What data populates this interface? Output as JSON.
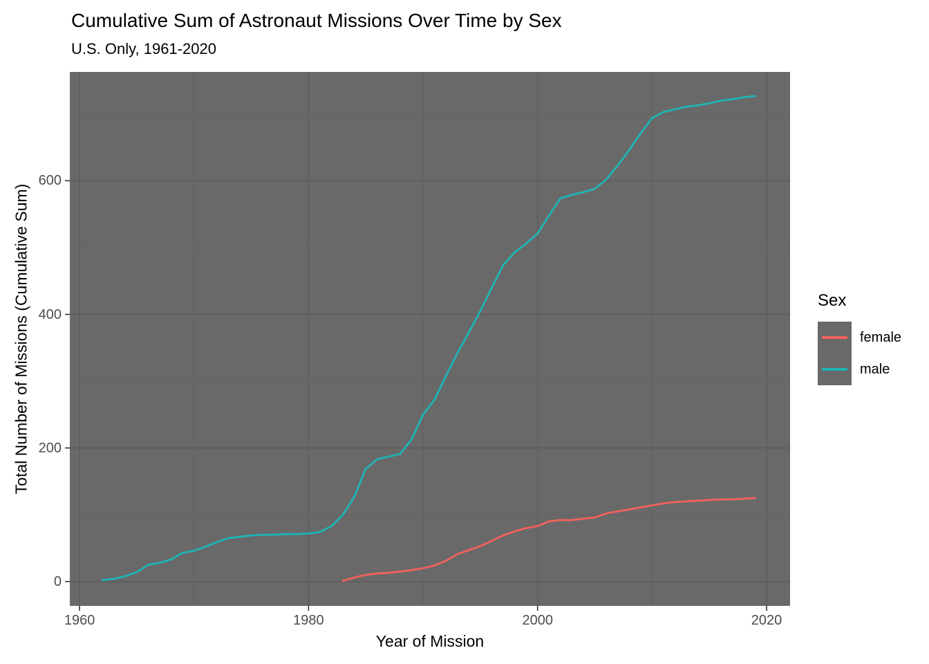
{
  "title": "Cumulative Sum of Astronaut Missions Over Time by Sex",
  "subtitle": "U.S. Only, 1961-2020",
  "legend": {
    "title": "Sex",
    "items": [
      {
        "label": "female",
        "color": "#F4615C"
      },
      {
        "label": "male",
        "color": "#1FB4B6"
      }
    ]
  },
  "chart_data": {
    "type": "line",
    "title": "Cumulative Sum of Astronaut Missions Over Time by Sex",
    "subtitle": "U.S. Only, 1961-2020",
    "xlabel": "Year of Mission",
    "ylabel": "Total Number of Missions (Cumulative Sum)",
    "xlim": [
      1959.15,
      2022.05
    ],
    "ylim": [
      -36.5,
      763
    ],
    "x_ticks": [
      1960,
      1980,
      2000,
      2020
    ],
    "x_minor_ticks": [
      1970,
      1990,
      2010
    ],
    "y_ticks": [
      0,
      200,
      400,
      600
    ],
    "y_minor_ticks": [
      100,
      300,
      500,
      700
    ],
    "grid": true,
    "legend_position": "right",
    "panel_background": "#696969",
    "grid_major_color": "#5D5D5D",
    "grid_minor_color": "#626262",
    "tick_mark_color": "#333333",
    "axis_text_color": "#4D4D4D",
    "series": [
      {
        "name": "female",
        "color": "#F4615C",
        "x": [
          1983,
          1984,
          1985,
          1986,
          1987,
          1988,
          1989,
          1990,
          1991,
          1992,
          1993,
          1994,
          1995,
          1996,
          1997,
          1998,
          1999,
          2000,
          2001,
          2002,
          2003,
          2004,
          2005,
          2006,
          2007,
          2008,
          2009,
          2010,
          2011,
          2012,
          2013,
          2014,
          2015,
          2016,
          2017,
          2018,
          2019
        ],
        "y": [
          1,
          6,
          10,
          12,
          13,
          15,
          17,
          20,
          24,
          31,
          41,
          47,
          53,
          61,
          69,
          75,
          80,
          83,
          90,
          92,
          92,
          94,
          96,
          102,
          105,
          108,
          111,
          114,
          117,
          119,
          120,
          121,
          122,
          123,
          123,
          124,
          125
        ]
      },
      {
        "name": "male",
        "color": "#1FB4B6",
        "x": [
          1962,
          1963,
          1964,
          1965,
          1966,
          1967,
          1968,
          1969,
          1970,
          1971,
          1972,
          1973,
          1974,
          1975,
          1976,
          1977,
          1978,
          1979,
          1980,
          1981,
          1982,
          1983,
          1984,
          1985,
          1986,
          1987,
          1988,
          1989,
          1990,
          1991,
          1992,
          1993,
          1994,
          1995,
          1996,
          1997,
          1998,
          1999,
          2000,
          2001,
          2002,
          2003,
          2004,
          2005,
          2006,
          2007,
          2008,
          2009,
          2010,
          2011,
          2012,
          2013,
          2014,
          2015,
          2016,
          2017,
          2018,
          2019
        ],
        "y": [
          2,
          4,
          8,
          14,
          25,
          28,
          33,
          43,
          46,
          52,
          59,
          65,
          67,
          69,
          70,
          70,
          71,
          71,
          72,
          74,
          83,
          100,
          127,
          169,
          183,
          187,
          191,
          213,
          250,
          272,
          308,
          342,
          373,
          405,
          440,
          474,
          493,
          506,
          521,
          548,
          574,
          579,
          583,
          588,
          602,
          623,
          646,
          671,
          694,
          703,
          707,
          711,
          713,
          716,
          720,
          722,
          725,
          727
        ]
      }
    ]
  }
}
